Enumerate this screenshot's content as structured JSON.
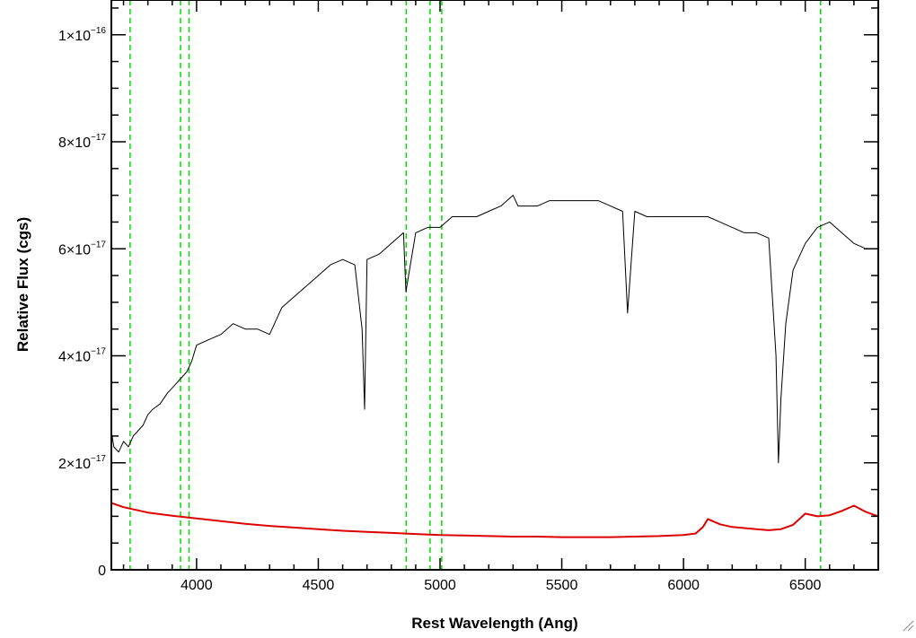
{
  "chart_data": {
    "type": "line",
    "title": "",
    "xlabel": "Rest Wavelength (Ang)",
    "ylabel": "Relative Flux (cgs)",
    "xlim": [
      3650,
      6800
    ],
    "ylim": [
      0,
      1.065e-16
    ],
    "x_ticks": [
      {
        "value": 4000,
        "label": "4000"
      },
      {
        "value": 4500,
        "label": "4500"
      },
      {
        "value": 5000,
        "label": "5000"
      },
      {
        "value": 5500,
        "label": "5500"
      },
      {
        "value": 6000,
        "label": "6000"
      },
      {
        "value": 6500,
        "label": "6500"
      }
    ],
    "y_ticks": [
      {
        "value": 0,
        "mantissa": "0",
        "exponent": ""
      },
      {
        "value": 2e-17,
        "mantissa": "2×10",
        "exponent": "−17"
      },
      {
        "value": 4e-17,
        "mantissa": "4×10",
        "exponent": "−17"
      },
      {
        "value": 6e-17,
        "mantissa": "6×10",
        "exponent": "−17"
      },
      {
        "value": 8e-17,
        "mantissa": "8×10",
        "exponent": "−17"
      },
      {
        "value": 1e-16,
        "mantissa": "1×10",
        "exponent": "−16"
      }
    ],
    "x_minor_step": 100,
    "y_minor_step": 5e-18,
    "grid": false,
    "reference_lines": {
      "color": "#00dd00",
      "x": [
        3727,
        3934,
        3969,
        4861,
        4959,
        5007,
        6563
      ]
    },
    "series": [
      {
        "color": "#000000",
        "x": [
          3650,
          3660,
          3680,
          3700,
          3720,
          3740,
          3760,
          3780,
          3800,
          3820,
          3850,
          3880,
          3900,
          3920,
          3940,
          3960,
          3980,
          4000,
          4050,
          4100,
          4150,
          4200,
          4250,
          4300,
          4350,
          4400,
          4450,
          4500,
          4550,
          4600,
          4650,
          4680,
          4690,
          4700,
          4750,
          4800,
          4850,
          4860,
          4900,
          4950,
          5000,
          5050,
          5100,
          5150,
          5200,
          5250,
          5300,
          5320,
          5350,
          5400,
          5450,
          5500,
          5550,
          5600,
          5650,
          5700,
          5750,
          5770,
          5800,
          5850,
          5900,
          5950,
          6000,
          6050,
          6100,
          6150,
          6200,
          6250,
          6300,
          6350,
          6380,
          6390,
          6400,
          6420,
          6450,
          6500,
          6550,
          6600,
          6650,
          6700,
          6750,
          6800
        ],
        "y": [
          2.6e-17,
          2.3e-17,
          2.2e-17,
          2.4e-17,
          2.3e-17,
          2.5e-17,
          2.6e-17,
          2.7e-17,
          2.9e-17,
          3e-17,
          3.1e-17,
          3.3e-17,
          3.4e-17,
          3.5e-17,
          3.6e-17,
          3.7e-17,
          3.9e-17,
          4.2e-17,
          4.3e-17,
          4.4e-17,
          4.6e-17,
          4.5e-17,
          4.5e-17,
          4.4e-17,
          4.9e-17,
          5.1e-17,
          5.3e-17,
          5.5e-17,
          5.7e-17,
          5.8e-17,
          5.7e-17,
          4.5e-17,
          3e-17,
          5.8e-17,
          5.9e-17,
          6.1e-17,
          6.3e-17,
          5.2e-17,
          6.3e-17,
          6.4e-17,
          6.4e-17,
          6.6e-17,
          6.6e-17,
          6.6e-17,
          6.7e-17,
          6.8e-17,
          7e-17,
          6.8e-17,
          6.8e-17,
          6.8e-17,
          6.9e-17,
          6.9e-17,
          6.9e-17,
          6.9e-17,
          6.9e-17,
          6.8e-17,
          6.7e-17,
          4.8e-17,
          6.7e-17,
          6.6e-17,
          6.6e-17,
          6.6e-17,
          6.6e-17,
          6.6e-17,
          6.6e-17,
          6.5e-17,
          6.4e-17,
          6.3e-17,
          6.3e-17,
          6.2e-17,
          4e-17,
          2e-17,
          3.2e-17,
          4.6e-17,
          5.6e-17,
          6.1e-17,
          6.4e-17,
          6.5e-17,
          6.3e-17,
          6.1e-17,
          6e-17,
          6e-17
        ]
      },
      {
        "color": "#dd0000",
        "x": [
          3650,
          3700,
          3750,
          3800,
          3900,
          4000,
          4100,
          4200,
          4300,
          4400,
          4500,
          4600,
          4700,
          4800,
          4900,
          5000,
          5100,
          5200,
          5300,
          5400,
          5500,
          5600,
          5700,
          5800,
          5900,
          6000,
          6050,
          6080,
          6100,
          6150,
          6200,
          6250,
          6300,
          6350,
          6400,
          6450,
          6500,
          6550,
          6600,
          6650,
          6700,
          6750,
          6800
        ],
        "y": [
          1.25e-17,
          1.17e-17,
          1.12e-17,
          1.07e-17,
          1.01e-17,
          9.6e-18,
          9.1e-18,
          8.6e-18,
          8.2e-18,
          7.9e-18,
          7.6e-18,
          7.3e-18,
          7.1e-18,
          6.9e-18,
          6.7e-18,
          6.5e-18,
          6.4e-18,
          6.3e-18,
          6.2e-18,
          6.2e-18,
          6.1e-18,
          6.1e-18,
          6.1e-18,
          6.2e-18,
          6.3e-18,
          6.5e-18,
          6.8e-18,
          8e-18,
          9.5e-18,
          8.5e-18,
          8e-18,
          7.8e-18,
          7.6e-18,
          7.4e-18,
          7.6e-18,
          8.4e-18,
          1.05e-17,
          1e-17,
          1.02e-17,
          1.1e-17,
          1.2e-17,
          1.08e-17,
          1e-17
        ]
      }
    ]
  }
}
